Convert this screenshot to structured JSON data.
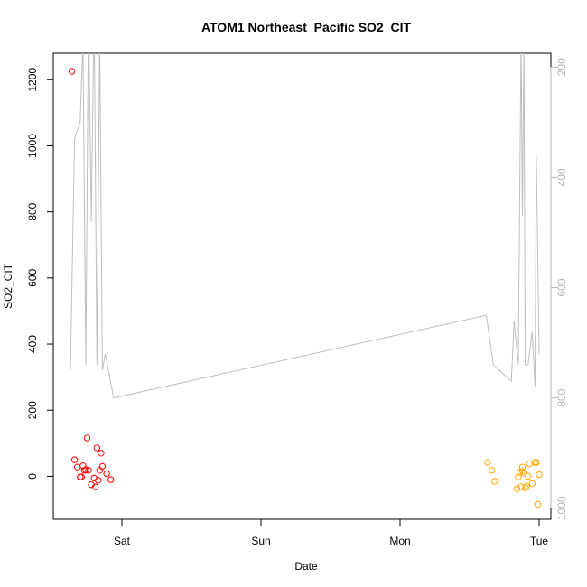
{
  "chart_data": {
    "type": "scatter",
    "title": "ATOM1 Northeast_Pacific SO2_CIT",
    "xlabel": "Date",
    "ylabel": "SO2_CIT",
    "x_tick_labels": [
      "Sat",
      "Sun",
      "Mon",
      "Tue"
    ],
    "x_range_days": [
      -0.42,
      3.1
    ],
    "ylim": [
      -130,
      1280
    ],
    "y_ticks": [
      0,
      200,
      400,
      600,
      800,
      1000,
      1200
    ],
    "y2_range": [
      1020,
      175
    ],
    "y2_ticks": [
      200,
      400,
      600,
      800,
      1000
    ],
    "y2_reversed": true,
    "colors": {
      "segment1": "#ff0000",
      "segment2": "#ffa500",
      "altitude_line": "#bebebe",
      "axis": "#000000",
      "right_axis": "#b4b4b4"
    },
    "series": [
      {
        "marker": "open-circle",
        "color": "#ff0000",
        "x": [
          -0.36,
          -0.34,
          -0.32,
          -0.3,
          -0.29,
          -0.28,
          -0.27,
          -0.26,
          -0.25,
          -0.24,
          -0.22,
          -0.2,
          -0.19,
          -0.18,
          -0.17,
          -0.16,
          -0.15,
          -0.14,
          -0.11,
          -0.08
        ],
        "y": [
          1225,
          50,
          28,
          -2,
          -2,
          32,
          18,
          20,
          116,
          18,
          -25,
          -5,
          -32,
          86,
          -12,
          18,
          70,
          30,
          8,
          -10
        ]
      },
      {
        "marker": "open-circle",
        "color": "#ffa500",
        "x": [
          2.63,
          2.66,
          2.68,
          2.84,
          2.85,
          2.86,
          2.87,
          2.88,
          2.88,
          2.89,
          2.9,
          2.91,
          2.92,
          2.93,
          2.95,
          2.97,
          2.98,
          2.99,
          3.0
        ],
        "y": [
          42,
          18,
          -15,
          -38,
          -2,
          12,
          -32,
          28,
          15,
          10,
          -35,
          -30,
          0,
          38,
          -22,
          42,
          42,
          -85,
          5
        ]
      },
      {
        "type": "line",
        "axis": "right",
        "color": "#bebebe",
        "x": [
          -0.37,
          -0.34,
          -0.3,
          -0.28,
          -0.26,
          -0.24,
          -0.22,
          -0.2,
          -0.18,
          -0.16,
          -0.14,
          -0.12,
          -0.06,
          2.62,
          2.67,
          2.8,
          2.82,
          2.85,
          2.87,
          2.88,
          2.89,
          2.9,
          2.92,
          2.95,
          2.97,
          2.98,
          3.0
        ],
        "y": [
          750,
          330,
          300,
          150,
          740,
          90,
          480,
          90,
          740,
          140,
          750,
          720,
          800,
          650,
          740,
          770,
          660,
          740,
          150,
          470,
          150,
          740,
          740,
          680,
          780,
          360,
          720
        ]
      }
    ]
  }
}
